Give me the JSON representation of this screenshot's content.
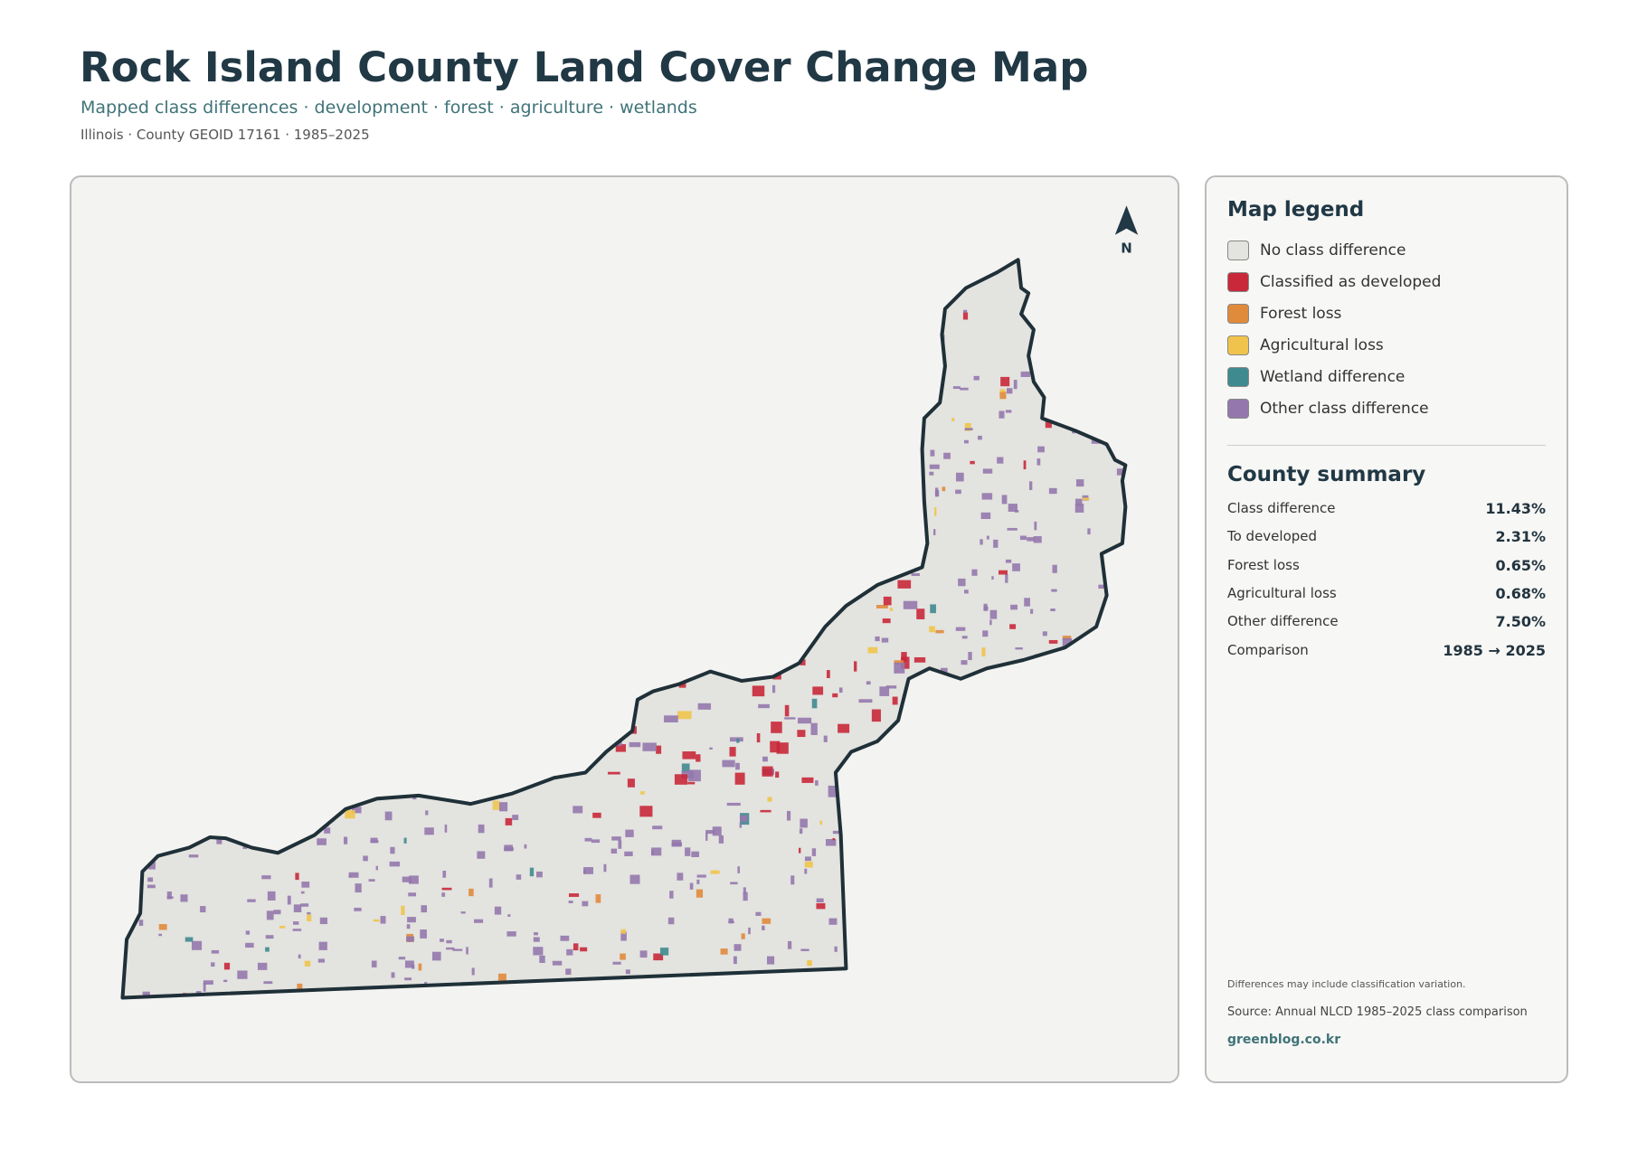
{
  "header": {
    "title": "Rock Island County Land Cover Change Map",
    "subtitle": "Mapped class differences · development · forest · agriculture · wetlands",
    "meta": "Illinois · County GEOID 17161 · 1985–2025"
  },
  "map": {
    "north": "N"
  },
  "legend": {
    "title": "Map legend",
    "items": [
      {
        "label": "No class difference",
        "color": "#e3e3df"
      },
      {
        "label": "Classified as developed",
        "color": "#c8283a"
      },
      {
        "label": "Forest loss",
        "color": "#e08a3c"
      },
      {
        "label": "Agricultural loss",
        "color": "#f0c44c"
      },
      {
        "label": "Wetland difference",
        "color": "#3f8a8f"
      },
      {
        "label": "Other class difference",
        "color": "#9478ad"
      }
    ]
  },
  "summary": {
    "title": "County summary",
    "rows": [
      {
        "label": "Class difference",
        "value": "11.43%"
      },
      {
        "label": "To developed",
        "value": "2.31%"
      },
      {
        "label": "Forest loss",
        "value": "0.65%"
      },
      {
        "label": "Agricultural loss",
        "value": "0.68%"
      },
      {
        "label": "Other difference",
        "value": "7.50%"
      },
      {
        "label": "Comparison",
        "value": "1985 → 2025"
      }
    ]
  },
  "footer": {
    "note": "Differences may include classification variation.",
    "source": "Source: Annual NLCD 1985–2025 class comparison",
    "site": "greenblog.co.kr"
  }
}
